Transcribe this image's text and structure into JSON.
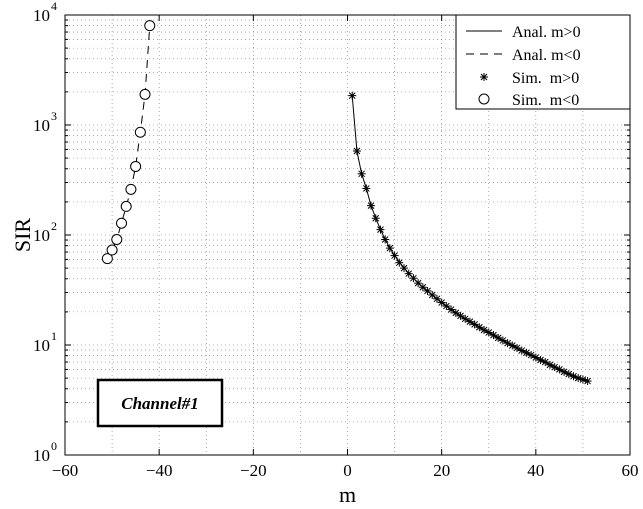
{
  "chart_data": {
    "type": "line",
    "title": "",
    "xlabel": "m",
    "ylabel": "SIR",
    "xlim": [
      -60,
      60
    ],
    "ylim": [
      1,
      10000
    ],
    "yscale": "log",
    "grid": true,
    "legend_position": "top-right",
    "x_ticks": [
      "−60",
      "−40",
      "−20",
      "0",
      "20",
      "40",
      "60"
    ],
    "y_ticks": [
      {
        "base": "10",
        "exp": "0"
      },
      {
        "base": "10",
        "exp": "1"
      },
      {
        "base": "10",
        "exp": "2"
      },
      {
        "base": "10",
        "exp": "3"
      },
      {
        "base": "10",
        "exp": "4"
      }
    ],
    "annotation": "Channel#1",
    "series": [
      {
        "name": "Anal. m>0",
        "style": "solid-line",
        "color": "#000000",
        "x": [
          1,
          2,
          3,
          4,
          5,
          6,
          7,
          8,
          9,
          10,
          12,
          14,
          16,
          18,
          20,
          22,
          24,
          26,
          28,
          30,
          32,
          34,
          36,
          38,
          40,
          42,
          44,
          46,
          48,
          50,
          51
        ],
        "y": [
          1850,
          580,
          360,
          265,
          185,
          142,
          112,
          91,
          76,
          65,
          50,
          40.5,
          33.5,
          28.5,
          24.3,
          21,
          18.4,
          16.3,
          14.5,
          13,
          11.6,
          10.4,
          9.4,
          8.5,
          7.7,
          7,
          6.3,
          5.7,
          5.2,
          4.85,
          4.7
        ]
      },
      {
        "name": "Anal. m<0",
        "style": "dashed-line",
        "color": "#000000",
        "x": [
          -51,
          -50,
          -49,
          -48,
          -47,
          -46,
          -45,
          -44,
          -43,
          -42
        ],
        "y": [
          61,
          73,
          91,
          128,
          182,
          260,
          420,
          860,
          1900,
          8000
        ]
      },
      {
        "name": "Sim.  m>0",
        "style": "star-marker",
        "color": "#000000",
        "x": [
          1,
          2,
          3,
          4,
          5,
          6,
          7,
          8,
          9,
          10,
          11,
          12,
          13,
          14,
          15,
          16,
          17,
          18,
          19,
          20,
          21,
          22,
          23,
          24,
          25,
          26,
          27,
          28,
          29,
          30,
          31,
          32,
          33,
          34,
          35,
          36,
          37,
          38,
          39,
          40,
          41,
          42,
          43,
          44,
          45,
          46,
          47,
          48,
          49,
          50,
          51
        ],
        "y": [
          1850,
          580,
          360,
          265,
          185,
          142,
          112,
          91,
          76,
          65,
          56,
          50,
          44.5,
          40.5,
          36.5,
          33.5,
          31,
          28.5,
          26.3,
          24.3,
          22.6,
          21,
          19.6,
          18.4,
          17.3,
          16.3,
          15.4,
          14.5,
          13.7,
          13,
          12.3,
          11.6,
          11,
          10.4,
          9.9,
          9.4,
          8.9,
          8.5,
          8.1,
          7.7,
          7.3,
          7,
          6.6,
          6.3,
          6,
          5.7,
          5.45,
          5.2,
          5,
          4.85,
          4.7
        ]
      },
      {
        "name": "Sim.  m<0",
        "style": "circle-marker",
        "color": "#000000",
        "x": [
          -51,
          -50,
          -49,
          -48,
          -47,
          -46,
          -45,
          -44,
          -43,
          -42
        ],
        "y": [
          61,
          73,
          91,
          128,
          182,
          260,
          420,
          860,
          1900,
          8000
        ]
      }
    ]
  }
}
